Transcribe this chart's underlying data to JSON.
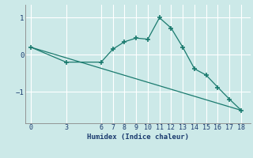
{
  "xlabel": "Humidex (Indice chaleur)",
  "background_color": "#cce9e8",
  "line_color": "#1a7a6e",
  "grid_color": "#ffffff",
  "line1_x": [
    0,
    3,
    6,
    7,
    8,
    9,
    10,
    11,
    12,
    13,
    14,
    15,
    16,
    17,
    18
  ],
  "line1_y": [
    0.2,
    -0.2,
    -0.2,
    0.15,
    0.35,
    0.45,
    0.42,
    1.0,
    0.72,
    0.2,
    -0.38,
    -0.55,
    -0.88,
    -1.2,
    -1.5
  ],
  "line2_x": [
    0,
    18
  ],
  "line2_y": [
    0.2,
    -1.5
  ],
  "xticks": [
    0,
    3,
    6,
    7,
    8,
    9,
    10,
    11,
    12,
    13,
    14,
    15,
    16,
    17,
    18
  ],
  "yticks": [
    -1,
    0,
    1
  ],
  "ylim": [
    -1.85,
    1.35
  ],
  "xlim": [
    -0.5,
    18.8
  ]
}
